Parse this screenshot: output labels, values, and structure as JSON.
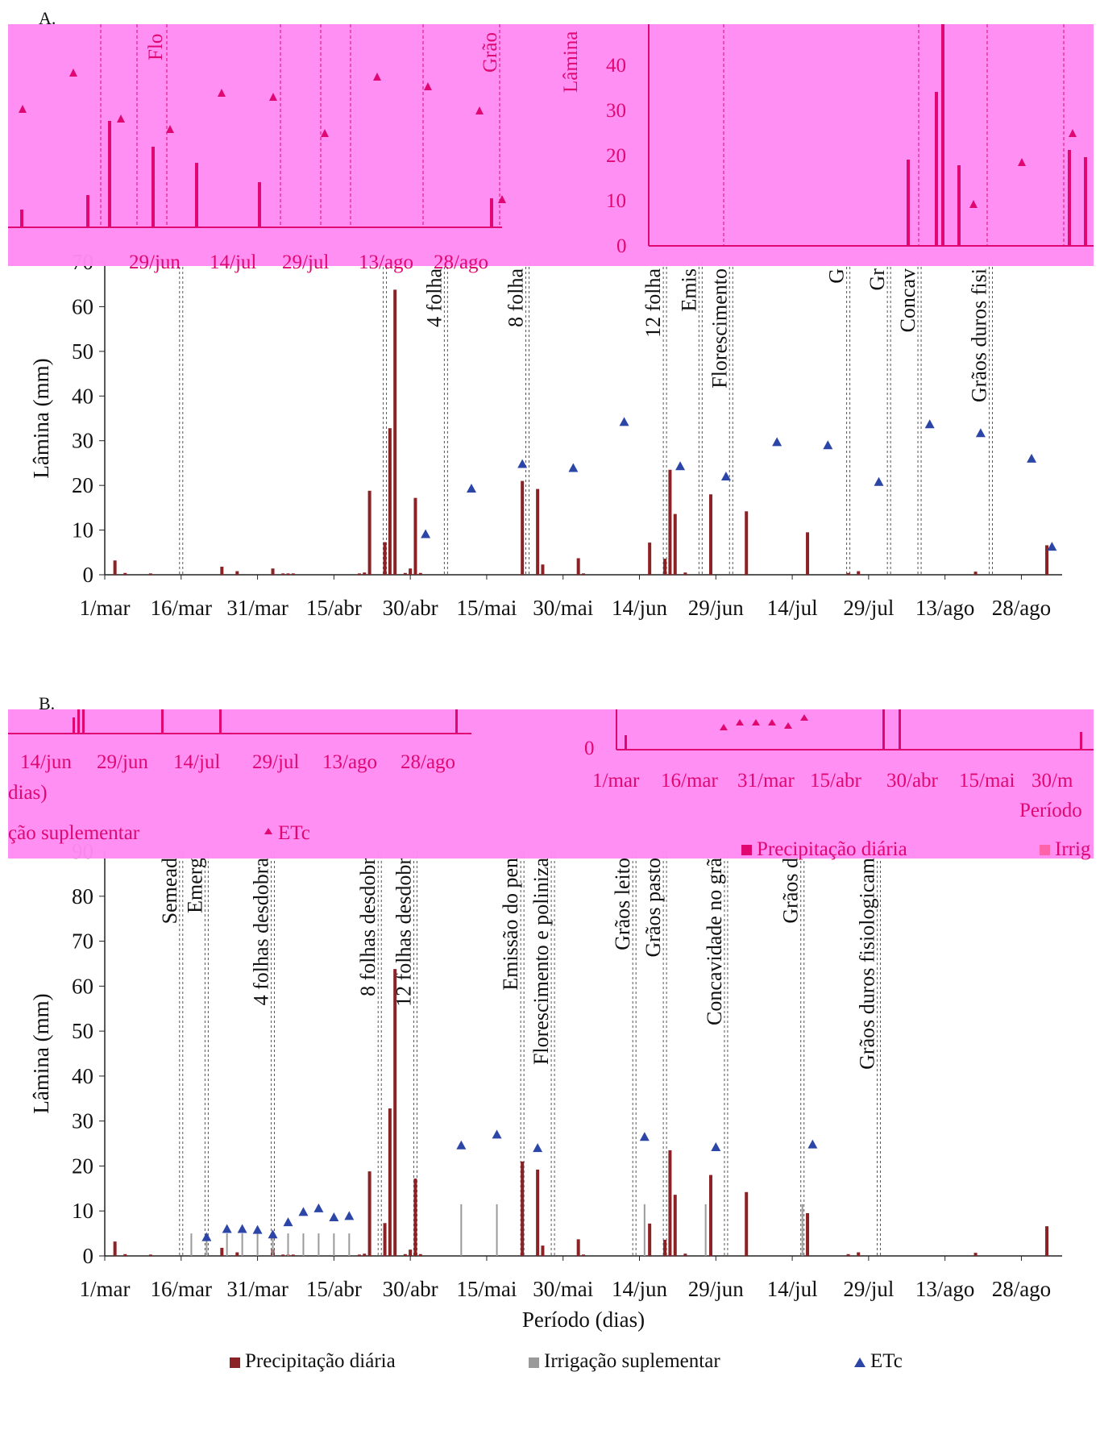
{
  "panels": {
    "a_letter": "A.",
    "b_letter": "B."
  },
  "colors": {
    "precip": "#8b2226",
    "irrig": "#9a9a9a",
    "etc": "#2c46a8",
    "artifact": "#ff8cf2",
    "artifact_text": "#e0006e"
  },
  "artifacts": {
    "a_left_ticks": [
      "29/jun",
      "14/jul",
      "29/jul",
      "13/ago",
      "28/ago"
    ],
    "a_right_ylabel": "Lâmina",
    "a_right_ticks": [
      "0",
      "10",
      "20",
      "30",
      "40"
    ],
    "a_left_stage1": "Flo",
    "a_left_stage2": "Grão",
    "b_left_ticks": [
      "14/jun",
      "29/jun",
      "14/jul",
      "29/jul",
      "13/ago",
      "28/ago"
    ],
    "b_left_dias": "dias)",
    "b_left_irrig": "ção suplementar",
    "b_left_etc": "ETc",
    "b_right_ticks": [
      "1/mar",
      "16/mar",
      "31/mar",
      "15/abr",
      "30/abr",
      "15/mai",
      "30/m"
    ],
    "b_right_periodo": "Período",
    "b_right_precip": "Precipitação diária",
    "b_right_irrig": "Irrig",
    "b_right_zero": "0"
  },
  "legend": {
    "precip": "Precipitação diária",
    "irrig": "Irrigação suplementar",
    "etc": "ETc"
  },
  "chart_data": [
    {
      "id": "A",
      "type": "bar",
      "ylabel": "Lâmina (mm)",
      "xlabel": "",
      "ylim": [
        0,
        70
      ],
      "yticks": [
        0,
        10,
        20,
        30,
        40,
        50,
        60,
        70
      ],
      "xlim": [
        0,
        188
      ],
      "xticks": [
        {
          "day": 0,
          "label": "1/mar"
        },
        {
          "day": 15,
          "label": "16/mar"
        },
        {
          "day": 30,
          "label": "31/mar"
        },
        {
          "day": 45,
          "label": "15/abr"
        },
        {
          "day": 60,
          "label": "30/abr"
        },
        {
          "day": 75,
          "label": "15/mai"
        },
        {
          "day": 90,
          "label": "30/mai"
        },
        {
          "day": 105,
          "label": "14/jun"
        },
        {
          "day": 120,
          "label": "29/jun"
        },
        {
          "day": 135,
          "label": "14/jul"
        },
        {
          "day": 150,
          "label": "29/jul"
        },
        {
          "day": 165,
          "label": "13/ago"
        },
        {
          "day": 180,
          "label": "28/ago"
        }
      ],
      "stages": [
        {
          "day": 15,
          "label": ""
        },
        {
          "day": 55,
          "label": ""
        },
        {
          "day": 67,
          "label": "4 folha"
        },
        {
          "day": 83,
          "label": "8 folha"
        },
        {
          "day": 110,
          "label": "12 folha"
        },
        {
          "day": 117,
          "label": "Emis"
        },
        {
          "day": 123,
          "label": "Florescimento"
        },
        {
          "day": 146,
          "label": "G"
        },
        {
          "day": 154,
          "label": "Gr"
        },
        {
          "day": 160,
          "label": "Concav"
        },
        {
          "day": 174,
          "label": "Grãos duros fisi"
        }
      ],
      "series": [
        {
          "kind": "precip",
          "points": [
            [
              2,
              3.2
            ],
            [
              4,
              0.4
            ],
            [
              9,
              0.3
            ],
            [
              23,
              1.8
            ],
            [
              26,
              0.8
            ],
            [
              33,
              1.4
            ],
            [
              35,
              0.3
            ],
            [
              36,
              0.3
            ],
            [
              37,
              0.3
            ],
            [
              50,
              0.3
            ],
            [
              51,
              0.5
            ],
            [
              52,
              18.8
            ],
            [
              55,
              7.3
            ],
            [
              56,
              32.8
            ],
            [
              57,
              63.8
            ],
            [
              59,
              0.4
            ],
            [
              60,
              1.4
            ],
            [
              61,
              17.2
            ],
            [
              62,
              0.4
            ],
            [
              82,
              21
            ],
            [
              85,
              19.2
            ],
            [
              86,
              2.3
            ],
            [
              93,
              3.7
            ],
            [
              94,
              0.3
            ],
            [
              107,
              7.2
            ],
            [
              110,
              3.6
            ],
            [
              111,
              23.5
            ],
            [
              112,
              13.6
            ],
            [
              114,
              0.5
            ],
            [
              119,
              18
            ],
            [
              126,
              14.2
            ],
            [
              138,
              9.5
            ],
            [
              146,
              0.4
            ],
            [
              148,
              0.8
            ],
            [
              171,
              0.7
            ],
            [
              185,
              6.6
            ]
          ]
        },
        {
          "kind": "etc",
          "points": [
            [
              63,
              9.1
            ],
            [
              72,
              19.3
            ],
            [
              82,
              24.8
            ],
            [
              92,
              23.9
            ],
            [
              102,
              34.2
            ],
            [
              113,
              24.3
            ],
            [
              122,
              22
            ],
            [
              132,
              29.7
            ],
            [
              142,
              29
            ],
            [
              152,
              20.8
            ],
            [
              162,
              33.7
            ],
            [
              172,
              31.7
            ],
            [
              182,
              26
            ],
            [
              186,
              6.3
            ]
          ]
        }
      ]
    },
    {
      "id": "B",
      "type": "bar",
      "ylabel": "Lâmina (mm)",
      "xlabel": "Período (dias)",
      "ylim": [
        0,
        90
      ],
      "yticks": [
        0,
        10,
        20,
        30,
        40,
        50,
        60,
        70,
        80,
        90
      ],
      "xlim": [
        0,
        188
      ],
      "xticks": [
        {
          "day": 0,
          "label": "1/mar"
        },
        {
          "day": 15,
          "label": "16/mar"
        },
        {
          "day": 30,
          "label": "31/mar"
        },
        {
          "day": 45,
          "label": "15/abr"
        },
        {
          "day": 60,
          "label": "30/abr"
        },
        {
          "day": 75,
          "label": "15/mai"
        },
        {
          "day": 90,
          "label": "30/mai"
        },
        {
          "day": 105,
          "label": "14/jun"
        },
        {
          "day": 120,
          "label": "29/jun"
        },
        {
          "day": 135,
          "label": "14/jul"
        },
        {
          "day": 150,
          "label": "29/jul"
        },
        {
          "day": 165,
          "label": "13/ago"
        },
        {
          "day": 180,
          "label": "28/ago"
        }
      ],
      "stages": [
        {
          "day": 15,
          "label": "Semead"
        },
        {
          "day": 20,
          "label": "Emerg"
        },
        {
          "day": 33,
          "label": "4 folhas desdobra"
        },
        {
          "day": 54,
          "label": "8 folhas desdobr"
        },
        {
          "day": 61,
          "label": "12 folhas desdobr"
        },
        {
          "day": 82,
          "label": "Emissão do pen"
        },
        {
          "day": 88,
          "label": "Florescimento e poliniza"
        },
        {
          "day": 104,
          "label": "Grãos leito"
        },
        {
          "day": 110,
          "label": "Grãos pasto"
        },
        {
          "day": 122,
          "label": "Concavidade no grã"
        },
        {
          "day": 137,
          "label": "Grãos d"
        },
        {
          "day": 152,
          "label": "Grãos duros fisiologicam"
        }
      ],
      "series": [
        {
          "kind": "precip",
          "points": [
            [
              2,
              3.2
            ],
            [
              4,
              0.4
            ],
            [
              9,
              0.3
            ],
            [
              23,
              1.8
            ],
            [
              26,
              0.8
            ],
            [
              33,
              1.4
            ],
            [
              35,
              0.3
            ],
            [
              36,
              0.3
            ],
            [
              37,
              0.3
            ],
            [
              50,
              0.3
            ],
            [
              51,
              0.5
            ],
            [
              52,
              18.8
            ],
            [
              55,
              7.3
            ],
            [
              56,
              32.8
            ],
            [
              57,
              63.8
            ],
            [
              59,
              0.4
            ],
            [
              60,
              1.4
            ],
            [
              61,
              17.2
            ],
            [
              62,
              0.4
            ],
            [
              82,
              21
            ],
            [
              85,
              19.2
            ],
            [
              86,
              2.3
            ],
            [
              93,
              3.7
            ],
            [
              94,
              0.3
            ],
            [
              107,
              7.2
            ],
            [
              110,
              3.6
            ],
            [
              111,
              23.5
            ],
            [
              112,
              13.6
            ],
            [
              114,
              0.5
            ],
            [
              119,
              18
            ],
            [
              126,
              14.2
            ],
            [
              138,
              9.5
            ],
            [
              146,
              0.4
            ],
            [
              148,
              0.8
            ],
            [
              171,
              0.7
            ],
            [
              185,
              6.6
            ]
          ]
        },
        {
          "kind": "irrig",
          "points": [
            [
              17,
              5
            ],
            [
              20,
              5
            ],
            [
              24,
              5
            ],
            [
              27,
              5
            ],
            [
              30,
              5
            ],
            [
              33,
              5
            ],
            [
              36,
              5
            ],
            [
              39,
              5
            ],
            [
              42,
              5
            ],
            [
              45,
              5
            ],
            [
              48,
              5
            ],
            [
              70,
              11.5
            ],
            [
              77,
              11.5
            ],
            [
              106,
              11.5
            ],
            [
              118,
              11.5
            ],
            [
              137,
              11.5
            ]
          ]
        },
        {
          "kind": "etc",
          "points": [
            [
              20,
              4.2
            ],
            [
              24,
              6
            ],
            [
              27,
              6
            ],
            [
              30,
              5.8
            ],
            [
              33,
              4.8
            ],
            [
              36,
              7.5
            ],
            [
              39,
              9.8
            ],
            [
              42,
              10.6
            ],
            [
              45,
              8.6
            ],
            [
              48,
              8.9
            ],
            [
              70,
              24.6
            ],
            [
              77,
              27
            ],
            [
              85,
              24
            ],
            [
              106,
              26.5
            ],
            [
              120,
              24.2
            ],
            [
              139,
              24.8
            ]
          ]
        }
      ]
    }
  ]
}
